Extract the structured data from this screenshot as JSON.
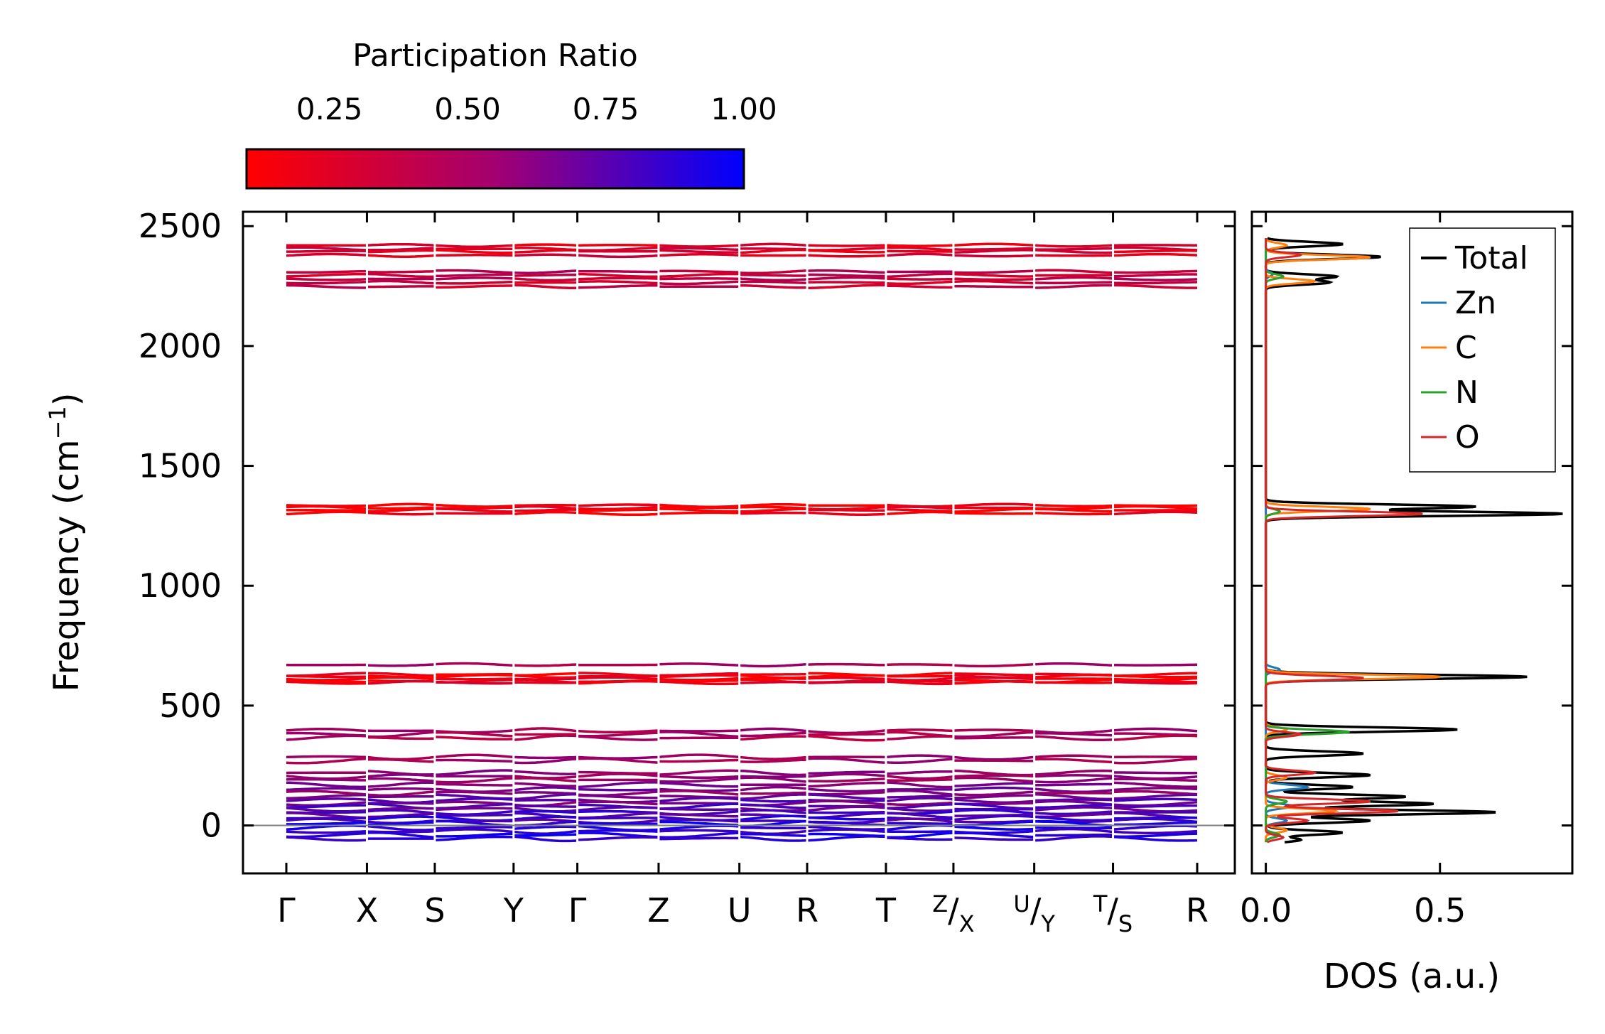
{
  "colors": {
    "cmap_low": "#ff0000",
    "cmap_high": "#0000ff",
    "total": "#000000",
    "Zn": "#1f77b4",
    "C": "#ff7f0e",
    "N": "#2ca02c",
    "O": "#d62728",
    "zero_line": "#808080"
  },
  "chart_data": [
    {
      "id": "phonon-band-structure",
      "type": "line",
      "ylabel": "Frequency (cm",
      "ylabel_sup": "−1",
      "ylabel_close": ")",
      "ylim": [
        -200,
        2560
      ],
      "yticks": [
        0,
        500,
        1000,
        1500,
        2000,
        2500
      ],
      "ytick_labels": [
        "0",
        "500",
        "1000",
        "1500",
        "2000",
        "2500"
      ],
      "kpath": [
        {
          "label": "Γ",
          "pos": 0
        },
        {
          "label": "X",
          "pos": 0.0885
        },
        {
          "label": "S",
          "pos": 0.163
        },
        {
          "label": "Y",
          "pos": 0.2495
        },
        {
          "label": "Γ",
          "pos": 0.3195
        },
        {
          "label": "Z",
          "pos": 0.4087
        },
        {
          "label": "U",
          "pos": 0.4974
        },
        {
          "label": "R",
          "pos": 0.5718
        },
        {
          "label": "T",
          "pos": 0.6583
        },
        {
          "label": "Z",
          "label2": "X",
          "pos": 0.7324
        },
        {
          "label": "U",
          "label2": "Y",
          "pos": 0.8211
        },
        {
          "label": "T",
          "label2": "S",
          "pos": 0.9076
        },
        {
          "label": "R",
          "pos": 1
        }
      ],
      "bands": [
        {
          "freq": 2420,
          "pr": 0.2
        },
        {
          "freq": 2405,
          "pr": 0.25
        },
        {
          "freq": 2395,
          "pr": 0.22
        },
        {
          "freq": 2378,
          "pr": 0.24
        },
        {
          "freq": 2310,
          "pr": 0.35
        },
        {
          "freq": 2295,
          "pr": 0.3
        },
        {
          "freq": 2280,
          "pr": 0.33
        },
        {
          "freq": 2265,
          "pr": 0.28
        },
        {
          "freq": 2248,
          "pr": 0.3
        },
        {
          "freq": 1335,
          "pr": 0.12
        },
        {
          "freq": 1325,
          "pr": 0.15
        },
        {
          "freq": 1315,
          "pr": 0.13
        },
        {
          "freq": 1302,
          "pr": 0.14
        },
        {
          "freq": 670,
          "pr": 0.4
        },
        {
          "freq": 630,
          "pr": 0.15
        },
        {
          "freq": 622,
          "pr": 0.12
        },
        {
          "freq": 612,
          "pr": 0.18
        },
        {
          "freq": 602,
          "pr": 0.14
        },
        {
          "freq": 596,
          "pr": 0.2
        },
        {
          "freq": 395,
          "pr": 0.42
        },
        {
          "freq": 380,
          "pr": 0.4
        },
        {
          "freq": 365,
          "pr": 0.38
        },
        {
          "freq": 285,
          "pr": 0.45
        },
        {
          "freq": 270,
          "pr": 0.43
        },
        {
          "freq": 220,
          "pr": 0.5
        },
        {
          "freq": 205,
          "pr": 0.48
        },
        {
          "freq": 190,
          "pr": 0.46
        },
        {
          "freq": 170,
          "pr": 0.55
        },
        {
          "freq": 150,
          "pr": 0.6
        },
        {
          "freq": 135,
          "pr": 0.5
        },
        {
          "freq": 120,
          "pr": 0.62
        },
        {
          "freq": 105,
          "pr": 0.7
        },
        {
          "freq": 92,
          "pr": 0.55
        },
        {
          "freq": 80,
          "pr": 0.75
        },
        {
          "freq": 68,
          "pr": 0.65
        },
        {
          "freq": 55,
          "pr": 0.8
        },
        {
          "freq": 42,
          "pr": 0.7
        },
        {
          "freq": 30,
          "pr": 0.85
        },
        {
          "freq": 18,
          "pr": 0.72
        },
        {
          "freq": 8,
          "pr": 0.9
        },
        {
          "freq": -10,
          "pr": 0.88
        },
        {
          "freq": -25,
          "pr": 0.82
        },
        {
          "freq": -40,
          "pr": 0.92
        },
        {
          "freq": -55,
          "pr": 0.85
        }
      ],
      "colorbar": {
        "label": "Participation Ratio",
        "range": [
          0.1,
          1.0
        ],
        "ticks": [
          0.25,
          0.5,
          0.75,
          1.0
        ],
        "tick_labels": [
          "0.25",
          "0.50",
          "0.75",
          "1.00"
        ]
      }
    },
    {
      "id": "phonon-dos",
      "type": "line",
      "xlabel": "DOS (a.u.)",
      "xlim": [
        -0.04,
        0.88
      ],
      "xticks": [
        0.0,
        0.5
      ],
      "xtick_labels": [
        "0.0",
        "0.5"
      ],
      "ylim": [
        -200,
        2560
      ],
      "legend_position": "upper right",
      "legend": [
        "Total",
        "Zn",
        "C",
        "N",
        "O"
      ],
      "series": [
        {
          "name": "Total",
          "peaks": [
            [
              2425,
              0.22
            ],
            [
              2372,
              0.33
            ],
            [
              2290,
              0.2
            ],
            [
              2265,
              0.18
            ],
            [
              1330,
              0.6
            ],
            [
              1300,
              0.85
            ],
            [
              620,
              0.75
            ],
            [
              400,
              0.55
            ],
            [
              300,
              0.28
            ],
            [
              210,
              0.3
            ],
            [
              160,
              0.25
            ],
            [
              120,
              0.4
            ],
            [
              90,
              0.48
            ],
            [
              55,
              0.66
            ],
            [
              20,
              0.3
            ],
            [
              -30,
              0.22
            ],
            [
              -60,
              0.1
            ]
          ]
        },
        {
          "name": "Zn",
          "peaks": [
            [
              2300,
              0.02
            ],
            [
              650,
              0.04
            ],
            [
              160,
              0.12
            ],
            [
              80,
              0.08
            ],
            [
              20,
              0.06
            ],
            [
              -40,
              0.04
            ]
          ]
        },
        {
          "name": "C",
          "peaks": [
            [
              2420,
              0.06
            ],
            [
              2370,
              0.3
            ],
            [
              2270,
              0.14
            ],
            [
              1320,
              0.3
            ],
            [
              620,
              0.5
            ],
            [
              400,
              0.06
            ],
            [
              200,
              0.06
            ],
            [
              60,
              0.2
            ],
            [
              -20,
              0.06
            ]
          ]
        },
        {
          "name": "N",
          "peaks": [
            [
              2290,
              0.05
            ],
            [
              1310,
              0.04
            ],
            [
              390,
              0.24
            ],
            [
              100,
              0.06
            ],
            [
              -40,
              0.04
            ]
          ]
        },
        {
          "name": "O",
          "peaks": [
            [
              2380,
              0.1
            ],
            [
              1300,
              0.45
            ],
            [
              615,
              0.28
            ],
            [
              380,
              0.1
            ],
            [
              220,
              0.14
            ],
            [
              100,
              0.3
            ],
            [
              60,
              0.38
            ],
            [
              20,
              0.12
            ],
            [
              -50,
              0.05
            ]
          ]
        }
      ]
    }
  ]
}
